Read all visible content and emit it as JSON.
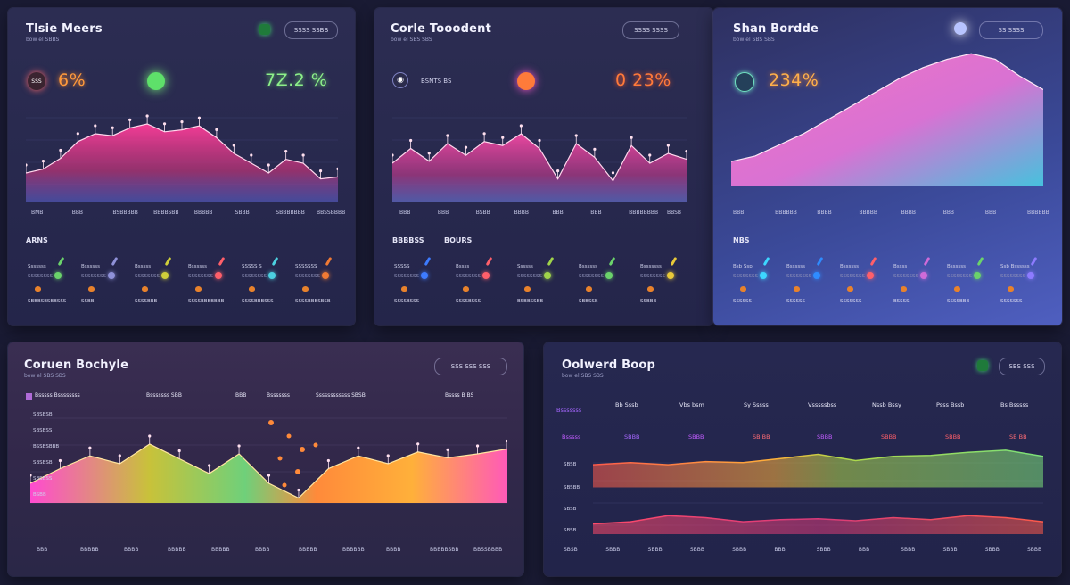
{
  "panels": {
    "p1": {
      "title": "Tlsie Meers",
      "subtitle": "bow el SBBS",
      "pill": "SSSS  SSBB",
      "kpi_left": "6%",
      "kpi_left_glyph": "SSS",
      "kpi_right": "7Z.2 %",
      "section": "ARNS",
      "ticks": [
        "BMB",
        "BBB",
        "BSBBBBB",
        "BBBBSBB",
        "BBBBB",
        "SBBB",
        "SBBBBBBB",
        "BBSSBBBB"
      ],
      "legend": [
        {
          "name": "Sssssss",
          "sub": "SSSSSSSS",
          "foot": "SBBBSBSBBSSS",
          "accent": "#6bd36b"
        },
        {
          "name": "Bssssss",
          "sub": "SSSSSSSS",
          "foot": "SSBB",
          "accent": "#8f91d8"
        },
        {
          "name": "Bsssss",
          "sub": "SSSSSSSS",
          "foot": "SSSSBBB",
          "accent": "#cfcf3a"
        },
        {
          "name": "Bssssss",
          "sub": "SSSSSSSS",
          "foot": "SSSSBBBBBBB",
          "accent": "#ff5f6a"
        },
        {
          "name": "SSSSS S",
          "sub": "SSSSSSSS",
          "foot": "SSSSBBBSSS",
          "accent": "#4cd0e0"
        },
        {
          "name": "SSSSSSS",
          "sub": "SSSSSSSS",
          "foot": "SSSSBBBSBSB",
          "accent": "#f07a34"
        }
      ]
    },
    "p2": {
      "title": "Corle Tooodent",
      "subtitle": "bow el SBS SBS",
      "pill": "SSSS  SSSS",
      "kpi_left_text": "BSNTS BS",
      "kpi_right": "0 23%",
      "section_a": "BBBBSS",
      "section_b": "BOURS",
      "ticks": [
        "BBB",
        "BBB",
        "BSBB",
        "BBBB",
        "BBB",
        "BBB",
        "BBBBBBBB",
        "BBSB"
      ],
      "legend": [
        {
          "name": "SSSSS",
          "sub": "SSSSSSSS",
          "foot": "SSSSBSSS",
          "accent": "#3d7bff"
        },
        {
          "name": "Bssss",
          "sub": "SSSSSSSS",
          "foot": "SSSSBSSS",
          "accent": "#ff5f6a"
        },
        {
          "name": "Ssssss",
          "sub": "SSSSSSSS",
          "foot": "BSBBSSBB",
          "accent": "#9fd34a"
        },
        {
          "name": "Bssssss",
          "sub": "SSSSSSSS",
          "foot": "SBBSSB",
          "accent": "#6bd36b"
        },
        {
          "name": "Bsssssss",
          "sub": "SSSSSSSS",
          "foot": "SSBBB",
          "accent": "#e8c93a"
        }
      ]
    },
    "p3": {
      "title": "Shan Bordde",
      "subtitle": "bow el SBS SBS",
      "pill": "SS  SSSS",
      "kpi": "234%",
      "section": "NBS",
      "ticks": [
        "BBB",
        "BBBBBB",
        "BBBB",
        "BBBBB",
        "BBBB",
        "BBB",
        "BBB",
        "BBBBBB"
      ],
      "legend": [
        {
          "name": "Bsb Ssp",
          "sub": "SSSSSSSS",
          "foot": "SSSSSS",
          "accent": "#3dd6ff"
        },
        {
          "name": "Bssssss",
          "sub": "SSSSSSSS",
          "foot": "SSSSSS",
          "accent": "#2f8cff"
        },
        {
          "name": "Bssssss",
          "sub": "SSSSSSSS",
          "foot": "SSSSSSS",
          "accent": "#ff5f6a"
        },
        {
          "name": "Bssss",
          "sub": "SSSSSSSS",
          "foot": "BSSSS",
          "accent": "#d06bd8"
        },
        {
          "name": "Bssssss",
          "sub": "SSSSSSSS",
          "foot": "SSSSBBB",
          "accent": "#6bd36b"
        },
        {
          "name": "Ssb Bssssss",
          "sub": "SSSSSSSS",
          "foot": "SSSSSSS",
          "accent": "#8d7bff"
        }
      ]
    },
    "p4": {
      "title": "Coruen Bochyle",
      "subtitle": "bow el SBS SBS",
      "pill": "SSS  SSS  SSS",
      "col_heads": [
        "Bsssss Bssssssss",
        "Bsssssss SBB",
        "BBB",
        "Bsssssss",
        "Ssssssssssss SBSB",
        "Bssss  B BS"
      ],
      "left_labels": [
        "SBSBSB",
        "SBSBSS",
        "BSSBSBBB",
        "SBSBSB",
        "SBSBSS",
        "BSBB"
      ],
      "ticks": [
        "BBB",
        "BBBBB",
        "BBBB",
        "BBBBB",
        "BBBBB",
        "BBBB",
        "BBBBB",
        "BBBBBB",
        "BBBB",
        "BBBBBSBB",
        "BBSSBBBB"
      ]
    },
    "p5": {
      "title": "Oolwerd Boop",
      "subtitle": "bow el SBS SBS",
      "pill": "SBS  SSS",
      "left_head": "Bsssssss",
      "columns": [
        {
          "head": "Bb Sssb",
          "val": "SBBB",
          "color": "#a667ff"
        },
        {
          "head": "Vbs bsm",
          "val": "SBBB",
          "color": "#c05cff"
        },
        {
          "head": "Sy Sssss",
          "val": "SB BB",
          "color": "#ff6b75"
        },
        {
          "head": "Vsssssbss",
          "val": "SBBB",
          "color": "#c05cff"
        },
        {
          "head": "Nssb Bssy",
          "val": "SBBB",
          "color": "#ff5f6a"
        },
        {
          "head": "Psss Bssb",
          "val": "SBBB",
          "color": "#ff5f6a"
        },
        {
          "head": "Bs Bsssss",
          "val": "SB BB",
          "color": "#ff6b75"
        }
      ],
      "left_val": "Bsssss",
      "y_labels": [
        "SBSB",
        "SBSBB",
        "SBSB",
        "SBSB"
      ],
      "x_ticks": [
        "SBSB",
        "SBBB",
        "SBBB",
        "SBBB",
        "SBBB",
        "BBB",
        "SBBB",
        "BBB",
        "SBBB",
        "SBBB",
        "SBBB",
        "SBBB"
      ]
    }
  },
  "chart_data": [
    {
      "type": "area",
      "series": [
        {
          "values": [
            30,
            34,
            45,
            62,
            70,
            68,
            76,
            80,
            72,
            74,
            78,
            66,
            50,
            40,
            30,
            44,
            40,
            24,
            26
          ]
        }
      ],
      "ylim": [
        0,
        100
      ],
      "xlabel": "",
      "ylabel": ""
    },
    {
      "type": "area",
      "series": [
        {
          "values": [
            40,
            55,
            42,
            60,
            48,
            62,
            58,
            70,
            55,
            24,
            60,
            46,
            22,
            58,
            40,
            50,
            44
          ]
        }
      ],
      "ylim": [
        0,
        100
      ],
      "xlabel": "",
      "ylabel": ""
    },
    {
      "type": "area",
      "series": [
        {
          "values": [
            18,
            22,
            30,
            38,
            48,
            58,
            68,
            78,
            86,
            92,
            96,
            92,
            80,
            70
          ]
        }
      ],
      "ylim": [
        0,
        100
      ],
      "xlabel": "",
      "ylabel": ""
    },
    {
      "type": "area",
      "series": [
        {
          "values": [
            20,
            35,
            48,
            40,
            60,
            45,
            30,
            50,
            20,
            5,
            35,
            48,
            40,
            52,
            46,
            50,
            55
          ]
        }
      ],
      "ylim": [
        0,
        100
      ],
      "xlabel": "",
      "ylabel": ""
    },
    {
      "type": "line",
      "series": [
        {
          "values": [
            22,
            24,
            22,
            25,
            24,
            28,
            32,
            26,
            30,
            31,
            34,
            36,
            30
          ]
        },
        {
          "values": [
            10,
            12,
            18,
            16,
            12,
            14,
            15,
            13,
            16,
            14,
            18,
            16,
            12
          ]
        }
      ],
      "ylim": [
        0,
        50
      ],
      "xlabel": "",
      "ylabel": ""
    }
  ]
}
